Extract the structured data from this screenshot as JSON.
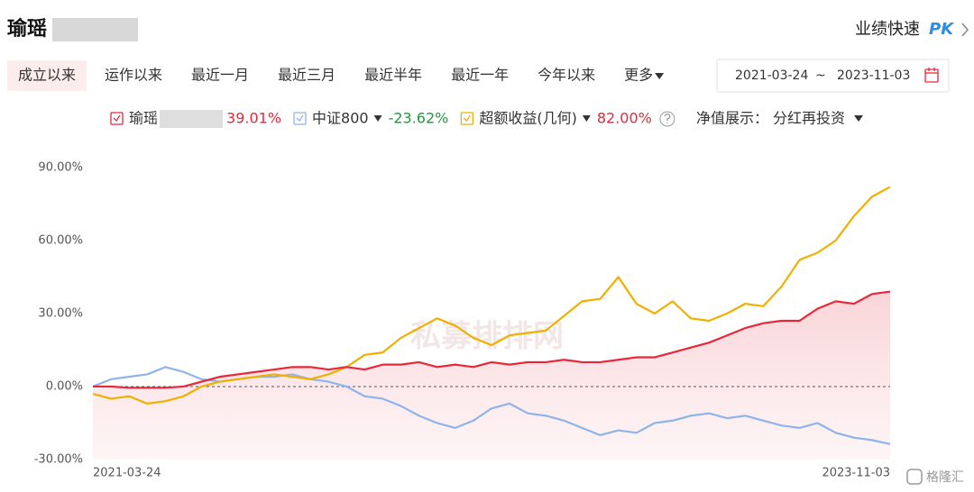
{
  "header": {
    "title": "瑜瑶",
    "pk_label": "业绩快速",
    "pk_badge": "PK"
  },
  "tabs": [
    "成立以来",
    "运作以来",
    "最近一月",
    "最近三月",
    "最近半年",
    "最近一年",
    "今年以来",
    "更多"
  ],
  "active_tab": 0,
  "date_range": {
    "start": "2021-03-24",
    "separator": "~",
    "end": "2023-11-03"
  },
  "display_option": {
    "label": "净值展示：",
    "value": "分红再投资"
  },
  "watermark": "私募排排网",
  "source": "格隆汇",
  "chart_data": {
    "type": "line",
    "categories": [
      "2021-03-24",
      null,
      null,
      null,
      null,
      null,
      null,
      null,
      null,
      null,
      null,
      null,
      null,
      null,
      null,
      null,
      null,
      null,
      null,
      null,
      null,
      null,
      null,
      null,
      null,
      null,
      null,
      null,
      null,
      null,
      null,
      null,
      null,
      null,
      null,
      null,
      null,
      null,
      null,
      null,
      null,
      null,
      null,
      null,
      "2023-11-03"
    ],
    "series": [
      {
        "name": "瑜瑶",
        "color": "#e8273a",
        "fill": true,
        "values": [
          0,
          0,
          -0.5,
          -0.5,
          -0.5,
          0,
          2,
          4,
          5,
          6,
          7,
          8,
          8,
          7,
          8,
          7,
          9,
          9,
          10,
          8,
          9,
          8,
          10,
          9,
          10,
          10,
          11,
          10,
          10,
          11,
          12,
          12,
          14,
          16,
          18,
          21,
          24,
          26,
          27,
          27,
          32,
          35,
          34,
          38,
          39.01
        ],
        "value_labels": [
          null,
          null,
          null,
          null,
          null,
          null,
          null,
          null,
          null,
          null,
          null,
          null,
          null,
          null,
          null,
          null,
          null,
          null,
          null,
          null,
          null,
          null,
          null,
          null,
          null,
          null,
          null,
          null,
          null,
          null,
          null,
          null,
          null,
          null,
          null,
          null,
          null,
          null,
          null,
          null,
          null,
          null,
          null,
          null,
          "39.01%"
        ]
      },
      {
        "name": "中证800",
        "color": "#8fb4ea",
        "fill": false,
        "values": [
          0,
          3,
          4,
          5,
          8,
          6,
          3,
          2,
          3,
          4,
          4,
          5,
          3,
          2,
          0,
          -4,
          -5,
          -8,
          -12,
          -15,
          -17,
          -14,
          -9,
          -7,
          -11,
          -12,
          -14,
          -17,
          -20,
          -18,
          -19,
          -15,
          -14,
          -12,
          -11,
          -13,
          -12,
          -14,
          -16,
          -17,
          -15,
          -19,
          -21,
          -22,
          -23.62
        ],
        "value_labels": [
          null,
          null,
          null,
          null,
          null,
          null,
          null,
          null,
          null,
          null,
          null,
          null,
          null,
          null,
          null,
          null,
          null,
          null,
          null,
          null,
          null,
          null,
          null,
          null,
          null,
          null,
          null,
          null,
          null,
          null,
          null,
          null,
          null,
          null,
          null,
          null,
          null,
          null,
          null,
          null,
          null,
          null,
          null,
          null,
          "-23.62%"
        ]
      },
      {
        "name": "超额收益(几何)",
        "color": "#f0b000",
        "fill": false,
        "values": [
          -3,
          -5,
          -4,
          -7,
          -6,
          -4,
          0,
          2,
          3,
          4,
          5,
          4,
          3,
          5,
          8,
          13,
          14,
          20,
          24,
          28,
          25,
          20,
          17,
          21,
          22,
          23,
          29,
          35,
          36,
          45,
          34,
          30,
          35,
          28,
          27,
          30,
          34,
          33,
          41,
          52,
          55,
          60,
          70,
          78,
          82.0
        ],
        "value_labels": [
          null,
          null,
          null,
          null,
          null,
          null,
          null,
          null,
          null,
          null,
          null,
          null,
          null,
          null,
          null,
          null,
          null,
          null,
          null,
          null,
          null,
          null,
          null,
          null,
          null,
          null,
          null,
          null,
          null,
          null,
          null,
          null,
          null,
          null,
          null,
          null,
          null,
          null,
          null,
          null,
          null,
          null,
          null,
          null,
          "82.00%"
        ]
      }
    ],
    "label_colors": [
      "#e8273a",
      "#1a9b3c",
      "#e8273a"
    ],
    "ylim": [
      -30,
      94
    ],
    "yticks": [
      {
        "value": -30,
        "label": "-30.00%"
      },
      {
        "value": 0,
        "label": "0.00%"
      },
      {
        "value": 30,
        "label": "30.00%"
      },
      {
        "value": 60,
        "label": "60.00%"
      },
      {
        "value": 90,
        "label": "90.00%"
      }
    ],
    "zero_line": true
  }
}
